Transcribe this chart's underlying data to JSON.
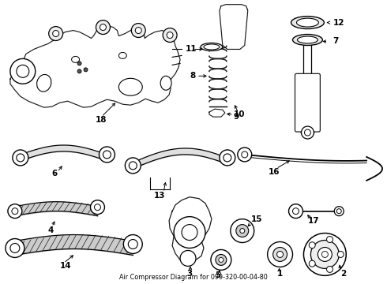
{
  "title": "Air Compressor Diagram for 099-320-00-04-80",
  "background_color": "#ffffff",
  "line_color": "#1a1a1a",
  "label_color": "#000000",
  "figsize": [
    4.9,
    3.6
  ],
  "dpi": 100,
  "font_size": 7.5
}
